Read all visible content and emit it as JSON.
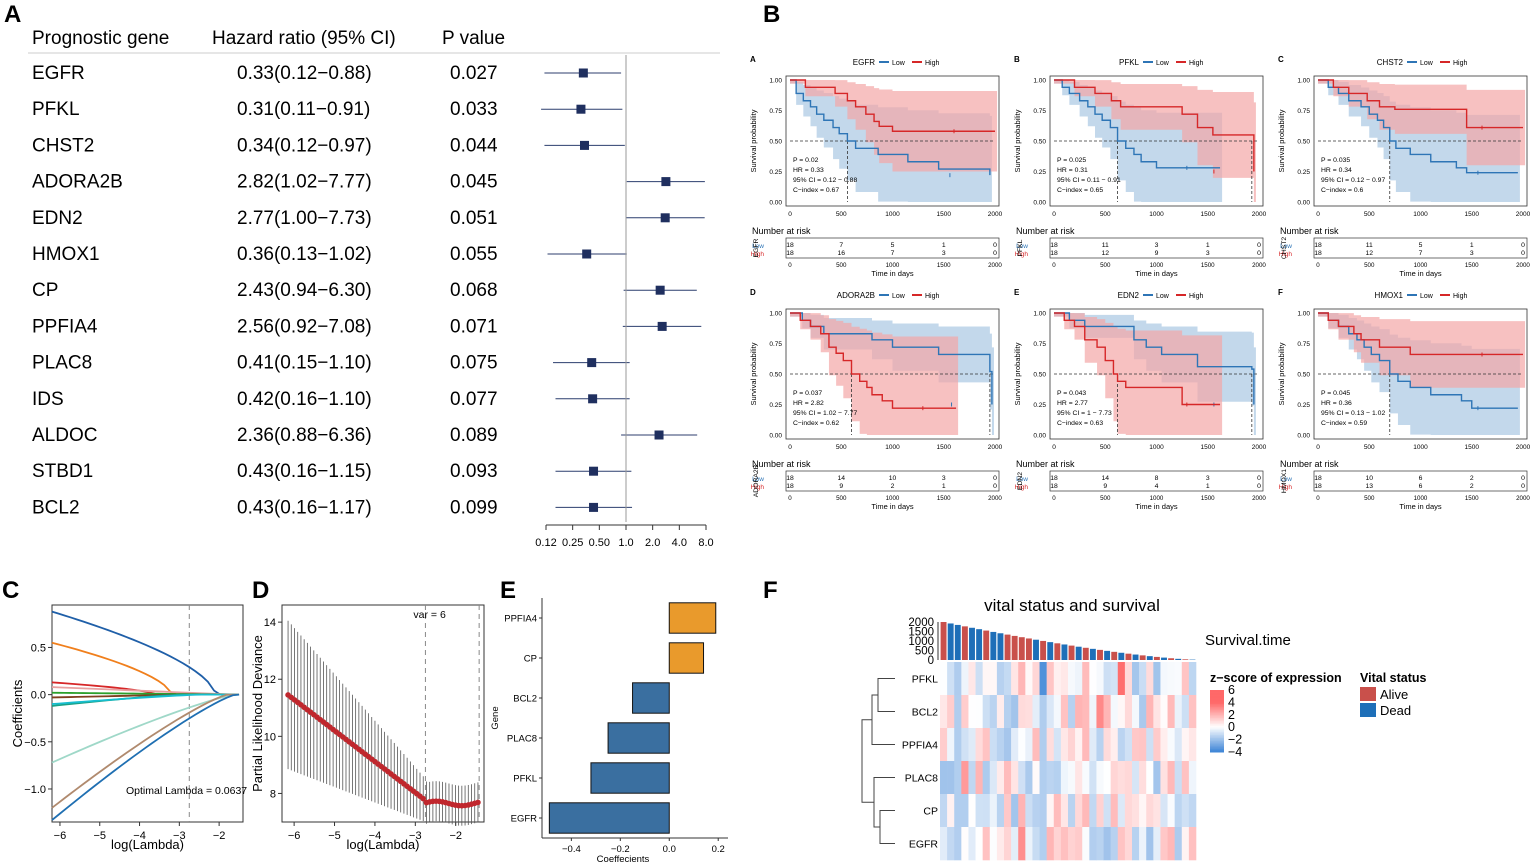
{
  "panel_letters": {
    "A": "A",
    "B": "B",
    "C": "C",
    "D": "D",
    "E": "E",
    "F": "F"
  },
  "colors": {
    "forest_square": "#1f2f5f",
    "low_blue": "#2e75b6",
    "high_red": "#d62728",
    "low_band": "#a9c8e3",
    "high_band": "#f3a7a7",
    "coef_bar_pos": "#e99a2c",
    "coef_bar_neg": "#3a6fa0",
    "dev_point": "#c0272d",
    "alive": "#c9504b",
    "dead": "#1e6fb8"
  },
  "forest": {
    "headers": {
      "gene": "Prognostic gene",
      "hr": "Hazard ratio (95% CI)",
      "p": "P value"
    },
    "rows": [
      {
        "gene": "EGFR",
        "hr_text": "0.33(0.12−0.88)",
        "p": "0.027",
        "hr": 0.33,
        "lo": 0.12,
        "hi": 0.88
      },
      {
        "gene": "PFKL",
        "hr_text": "0.31(0.11−0.91)",
        "p": "0.033",
        "hr": 0.31,
        "lo": 0.11,
        "hi": 0.91
      },
      {
        "gene": "CHST2",
        "hr_text": "0.34(0.12−0.97)",
        "p": "0.044",
        "hr": 0.34,
        "lo": 0.12,
        "hi": 0.97
      },
      {
        "gene": "ADORA2B",
        "hr_text": "2.82(1.02−7.77)",
        "p": "0.045",
        "hr": 2.82,
        "lo": 1.02,
        "hi": 7.77
      },
      {
        "gene": "EDN2",
        "hr_text": "2.77(1.00−7.73)",
        "p": "0.051",
        "hr": 2.77,
        "lo": 1.0,
        "hi": 7.73
      },
      {
        "gene": "HMOX1",
        "hr_text": "0.36(0.13−1.02)",
        "p": "0.055",
        "hr": 0.36,
        "lo": 0.13,
        "hi": 1.02
      },
      {
        "gene": "CP",
        "hr_text": "2.43(0.94−6.30)",
        "p": "0.068",
        "hr": 2.43,
        "lo": 0.94,
        "hi": 6.3
      },
      {
        "gene": "PPFIA4",
        "hr_text": "2.56(0.92−7.08)",
        "p": "0.071",
        "hr": 2.56,
        "lo": 0.92,
        "hi": 7.08
      },
      {
        "gene": "PLAC8",
        "hr_text": "0.41(0.15−1.10)",
        "p": "0.075",
        "hr": 0.41,
        "lo": 0.15,
        "hi": 1.1
      },
      {
        "gene": "IDS",
        "hr_text": "0.42(0.16−1.10)",
        "p": "0.077",
        "hr": 0.42,
        "lo": 0.16,
        "hi": 1.1
      },
      {
        "gene": "ALDOC",
        "hr_text": "2.36(0.88−6.36)",
        "p": "0.089",
        "hr": 2.36,
        "lo": 0.88,
        "hi": 6.36
      },
      {
        "gene": "STBD1",
        "hr_text": "0.43(0.16−1.15)",
        "p": "0.093",
        "hr": 0.43,
        "lo": 0.16,
        "hi": 1.15
      },
      {
        "gene": "BCL2",
        "hr_text": "0.43(0.16−1.17)",
        "p": "0.099",
        "hr": 0.43,
        "lo": 0.16,
        "hi": 1.17
      }
    ],
    "axis_ticks": [
      "0.12",
      "0.25",
      "0.50",
      "1.0",
      "2.0",
      "4.0",
      "8.0"
    ]
  },
  "km": {
    "legend_low": "Low",
    "legend_high": "High",
    "ylabel": "Survival probability",
    "xlabel": "Time in days",
    "risk_title": "Number at risk",
    "yticks": [
      "0.00",
      "0.25",
      "0.50",
      "0.75",
      "1.00"
    ],
    "xticks": [
      "0",
      "500",
      "1000",
      "1500",
      "2000"
    ],
    "panels": [
      {
        "tag": "A",
        "gene": "EGFR",
        "stats": [
          "P = 0.02",
          "HR = 0.33",
          "95% CI = 0.12 − 0.88",
          "C−index = 0.67"
        ],
        "median_low": 560,
        "median_high": null,
        "low": [
          [
            0,
            1
          ],
          [
            60,
            0.89
          ],
          [
            130,
            0.83
          ],
          [
            200,
            0.78
          ],
          [
            260,
            0.72
          ],
          [
            330,
            0.67
          ],
          [
            420,
            0.61
          ],
          [
            480,
            0.56
          ],
          [
            560,
            0.5
          ],
          [
            640,
            0.44
          ],
          [
            780,
            0.44
          ],
          [
            860,
            0.39
          ],
          [
            1000,
            0.39
          ],
          [
            1150,
            0.33
          ],
          [
            1450,
            0.27
          ],
          [
            1650,
            0.27
          ],
          [
            1950,
            0.22
          ]
        ],
        "high": [
          [
            0,
            1
          ],
          [
            150,
            0.94
          ],
          [
            300,
            0.94
          ],
          [
            440,
            0.89
          ],
          [
            560,
            0.83
          ],
          [
            640,
            0.78
          ],
          [
            740,
            0.72
          ],
          [
            820,
            0.66
          ],
          [
            870,
            0.62
          ],
          [
            1000,
            0.58
          ],
          [
            2000,
            0.58
          ]
        ],
        "risk_low": [
          "18",
          "7",
          "5",
          "1",
          "0"
        ],
        "risk_high": [
          "18",
          "16",
          "7",
          "3",
          "0"
        ]
      },
      {
        "tag": "B",
        "gene": "PFKL",
        "stats": [
          "P = 0.025",
          "HR = 0.31",
          "95% CI = 0.11 − 0.91",
          "C−index = 0.65"
        ],
        "median_low": 620,
        "median_high": 1930,
        "low": [
          [
            0,
            1
          ],
          [
            80,
            0.94
          ],
          [
            150,
            0.89
          ],
          [
            250,
            0.83
          ],
          [
            330,
            0.78
          ],
          [
            400,
            0.72
          ],
          [
            470,
            0.67
          ],
          [
            550,
            0.61
          ],
          [
            620,
            0.5
          ],
          [
            700,
            0.44
          ],
          [
            780,
            0.39
          ],
          [
            850,
            0.33
          ],
          [
            1000,
            0.28
          ],
          [
            1620,
            0.28
          ]
        ],
        "high": [
          [
            0,
            1
          ],
          [
            200,
            0.94
          ],
          [
            400,
            0.89
          ],
          [
            560,
            0.83
          ],
          [
            650,
            0.78
          ],
          [
            1250,
            0.72
          ],
          [
            1400,
            0.61
          ],
          [
            1550,
            0.55
          ],
          [
            1930,
            0.55
          ],
          [
            1950,
            0.25
          ]
        ],
        "risk_low": [
          "18",
          "11",
          "3",
          "1",
          "0"
        ],
        "risk_high": [
          "18",
          "12",
          "9",
          "3",
          "0"
        ]
      },
      {
        "tag": "C",
        "gene": "CHST2",
        "stats": [
          "P = 0.035",
          "HR = 0.34",
          "95% CI = 0.12 − 0.97",
          "C−index = 0.6"
        ],
        "median_low": 700,
        "median_high": null,
        "low": [
          [
            0,
            1
          ],
          [
            100,
            0.94
          ],
          [
            200,
            0.89
          ],
          [
            300,
            0.83
          ],
          [
            420,
            0.78
          ],
          [
            500,
            0.72
          ],
          [
            580,
            0.67
          ],
          [
            640,
            0.61
          ],
          [
            700,
            0.5
          ],
          [
            760,
            0.44
          ],
          [
            900,
            0.39
          ],
          [
            1100,
            0.33
          ],
          [
            1350,
            0.28
          ],
          [
            1450,
            0.24
          ],
          [
            1950,
            0.24
          ]
        ],
        "high": [
          [
            0,
            1
          ],
          [
            150,
            0.94
          ],
          [
            300,
            0.89
          ],
          [
            480,
            0.83
          ],
          [
            600,
            0.78
          ],
          [
            750,
            0.76
          ],
          [
            1400,
            0.76
          ],
          [
            1450,
            0.61
          ],
          [
            2000,
            0.61
          ]
        ],
        "risk_low": [
          "18",
          "11",
          "5",
          "1",
          "0"
        ],
        "risk_high": [
          "18",
          "12",
          "7",
          "3",
          "0"
        ]
      },
      {
        "tag": "D",
        "gene": "ADORA2B",
        "stats": [
          "P = 0.037",
          "HR = 2.82",
          "95% CI = 1.02 − 7.77",
          "C−index = 0.62"
        ],
        "median_low": 1950,
        "median_high": 600,
        "low": [
          [
            0,
            1
          ],
          [
            120,
            0.94
          ],
          [
            200,
            0.89
          ],
          [
            330,
            0.83
          ],
          [
            700,
            0.83
          ],
          [
            800,
            0.78
          ],
          [
            1000,
            0.72
          ],
          [
            1400,
            0.72
          ],
          [
            1450,
            0.66
          ],
          [
            1950,
            0.52
          ],
          [
            1970,
            0.25
          ]
        ],
        "high": [
          [
            0,
            1
          ],
          [
            100,
            0.94
          ],
          [
            200,
            0.89
          ],
          [
            300,
            0.83
          ],
          [
            380,
            0.72
          ],
          [
            450,
            0.67
          ],
          [
            520,
            0.61
          ],
          [
            600,
            0.5
          ],
          [
            680,
            0.44
          ],
          [
            750,
            0.39
          ],
          [
            800,
            0.33
          ],
          [
            900,
            0.28
          ],
          [
            1000,
            0.22
          ],
          [
            1620,
            0.22
          ]
        ],
        "risk_low": [
          "18",
          "14",
          "10",
          "3",
          "0"
        ],
        "risk_high": [
          "18",
          "9",
          "2",
          "1",
          "0"
        ]
      },
      {
        "tag": "E",
        "gene": "EDN2",
        "stats": [
          "P = 0.043",
          "HR = 2.77",
          "95% CI = 1 − 7.73",
          "C−index = 0.63"
        ],
        "median_low": 1930,
        "median_high": 620,
        "low": [
          [
            0,
            1
          ],
          [
            150,
            0.94
          ],
          [
            300,
            0.89
          ],
          [
            700,
            0.89
          ],
          [
            780,
            0.78
          ],
          [
            900,
            0.72
          ],
          [
            1050,
            0.66
          ],
          [
            1400,
            0.56
          ],
          [
            1930,
            0.54
          ],
          [
            1950,
            0.25
          ]
        ],
        "high": [
          [
            0,
            1
          ],
          [
            100,
            0.94
          ],
          [
            200,
            0.89
          ],
          [
            300,
            0.78
          ],
          [
            420,
            0.72
          ],
          [
            500,
            0.61
          ],
          [
            580,
            0.5
          ],
          [
            620,
            0.44
          ],
          [
            700,
            0.39
          ],
          [
            1200,
            0.39
          ],
          [
            1250,
            0.25
          ],
          [
            1620,
            0.25
          ]
        ],
        "risk_low": [
          "18",
          "14",
          "8",
          "3",
          "0"
        ],
        "risk_high": [
          "18",
          "9",
          "4",
          "1",
          "0"
        ]
      },
      {
        "tag": "F",
        "gene": "HMOX1",
        "stats": [
          "P = 0.045",
          "HR = 0.36",
          "95% CI = 0.13 − 1.02",
          "C−index = 0.59"
        ],
        "median_low": 700,
        "median_high": null,
        "low": [
          [
            0,
            1
          ],
          [
            100,
            0.94
          ],
          [
            200,
            0.89
          ],
          [
            300,
            0.83
          ],
          [
            380,
            0.78
          ],
          [
            450,
            0.72
          ],
          [
            520,
            0.66
          ],
          [
            600,
            0.61
          ],
          [
            700,
            0.5
          ],
          [
            780,
            0.44
          ],
          [
            900,
            0.39
          ],
          [
            1100,
            0.33
          ],
          [
            1400,
            0.28
          ],
          [
            1500,
            0.22
          ],
          [
            1950,
            0.22
          ]
        ],
        "high": [
          [
            0,
            1
          ],
          [
            100,
            0.94
          ],
          [
            200,
            0.89
          ],
          [
            350,
            0.83
          ],
          [
            420,
            0.78
          ],
          [
            600,
            0.72
          ],
          [
            800,
            0.72
          ],
          [
            900,
            0.66
          ],
          [
            2000,
            0.66
          ]
        ],
        "risk_low": [
          "18",
          "10",
          "6",
          "2",
          "0"
        ],
        "risk_high": [
          "18",
          "13",
          "6",
          "2",
          "0"
        ]
      }
    ]
  },
  "lasso_coef": {
    "ylabel": "Coefficients",
    "xlabel": "log(Lambda)",
    "annotation": "Optimal Lambda = 0.0637",
    "xticks": [
      "−6",
      "−5",
      "−4",
      "−3",
      "−2"
    ],
    "yticks": [
      "0.5",
      "0.0",
      "−0.5",
      "−1.0"
    ],
    "xlim": [
      -6.2,
      -1.4
    ],
    "ylim": [
      -1.35,
      0.95
    ],
    "cutoff": -2.75,
    "lines": [
      {
        "color": "#1f5fa8",
        "start": 0.88,
        "end_lambda": -2.1,
        "shape": "drop"
      },
      {
        "color": "#f07f1c",
        "start": 0.55,
        "end_lambda": -3.2,
        "shape": "drop"
      },
      {
        "color": "#d62728",
        "start": 0.13,
        "end_lambda": -3.6,
        "shape": "drop"
      },
      {
        "color": "#e8a0a0",
        "start": 0.08,
        "end_lambda": -1.6,
        "shape": "flat"
      },
      {
        "color": "#2ca02c",
        "start": 0.02,
        "end_lambda": -1.5,
        "shape": "flat"
      },
      {
        "color": "#7f3f1f",
        "start": -0.03,
        "end_lambda": -3.0,
        "shape": "flat"
      },
      {
        "color": "#1aa085",
        "start": -0.12,
        "end_lambda": -3.0,
        "shape": "rise"
      },
      {
        "color": "#17becf",
        "start": -0.1,
        "end_lambda": -2.5,
        "shape": "rise"
      },
      {
        "color": "#9fd8c8",
        "start": -0.72,
        "end_lambda": -1.6,
        "shape": "rise"
      },
      {
        "color": "#b08a6e",
        "start": -1.2,
        "end_lambda": -1.8,
        "shape": "rise"
      },
      {
        "color": "#1f6fb2",
        "start": -1.33,
        "end_lambda": -1.6,
        "shape": "rise"
      }
    ]
  },
  "lasso_dev": {
    "ylabel": "Partial Likelihood Deviance",
    "xlabel": "log(Lambda)",
    "annotation": "var = 6",
    "xticks": [
      "−6",
      "−5",
      "−4",
      "−3",
      "−2"
    ],
    "yticks": [
      "8",
      "10",
      "12",
      "14"
    ],
    "xlim": [
      -6.3,
      -1.3
    ],
    "ylim": [
      7.0,
      14.6
    ],
    "cut1": -2.75,
    "cut2": -1.42
  },
  "coef_bar": {
    "type": "bar",
    "categories": [
      "PPFIA4",
      "CP",
      "BCL2",
      "PLAC8",
      "PFKL",
      "EGFR"
    ],
    "values": [
      0.19,
      0.14,
      -0.15,
      -0.25,
      -0.32,
      -0.49
    ],
    "xlabel": "Coeffecients",
    "ylabel": "Gene",
    "xticks": [
      "−0.4",
      "−0.2",
      "0.0",
      "0.2"
    ],
    "xlim": [
      -0.52,
      0.24
    ]
  },
  "heatmap": {
    "title": "vital status and survival",
    "survival_label": "Survival.time",
    "survival_yticks": [
      "2000",
      "1500",
      "1000",
      "500",
      "0"
    ],
    "genes": [
      "PFKL",
      "BCL2",
      "PPFIA4",
      "PLAC8",
      "CP",
      "EGFR"
    ],
    "legend_title": "z−score of expression",
    "legend_ticks": [
      "6",
      "4",
      "2",
      "0",
      "−2",
      "−4"
    ],
    "vital_title": "Vital status",
    "vital_alive": "Alive",
    "vital_dead": "Dead",
    "n_samples": 36
  }
}
